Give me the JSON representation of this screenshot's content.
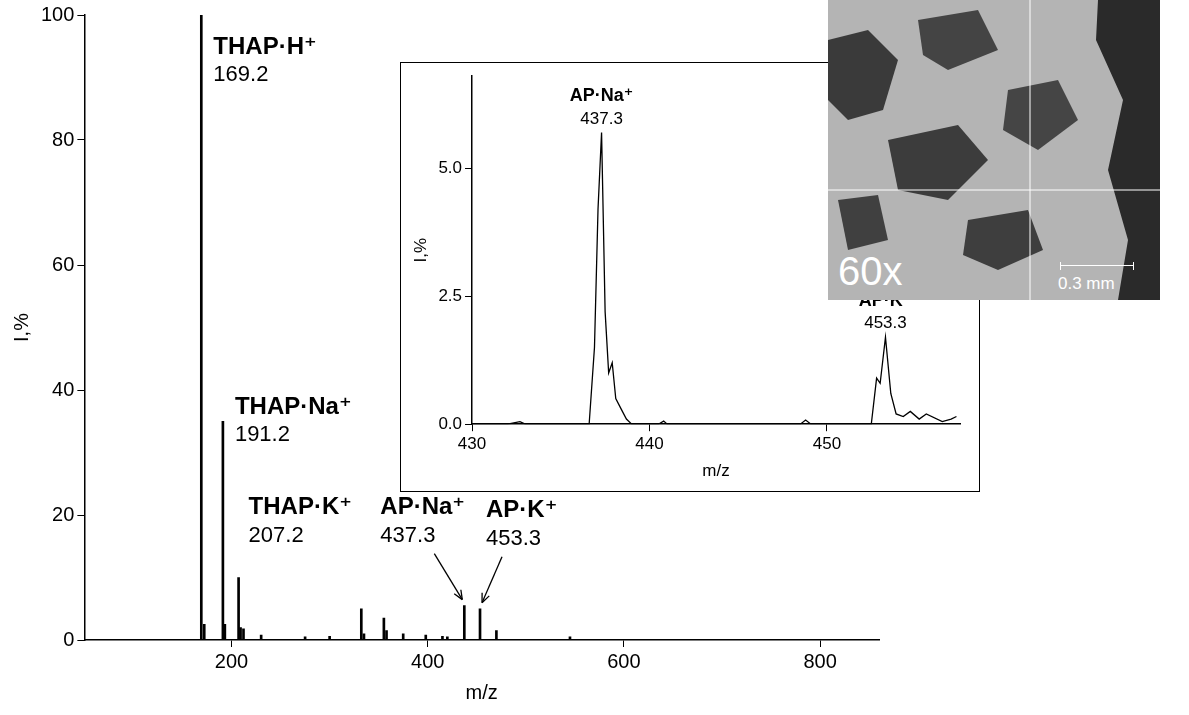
{
  "chart_data": [
    {
      "type": "bar",
      "x": [
        169.2,
        172.2,
        191.2,
        193.2,
        207.2,
        209.2,
        212.2,
        230.2,
        275,
        300,
        332.3,
        335,
        355.3,
        358,
        375,
        398,
        415,
        420,
        437.3,
        453.3,
        470,
        545
      ],
      "values": [
        100,
        2.5,
        35,
        2.5,
        10,
        2,
        1.8,
        0.8,
        0.5,
        0.6,
        5,
        1,
        3.5,
        1.5,
        1,
        0.8,
        0.6,
        0.5,
        5.5,
        5,
        1.5,
        0.5
      ],
      "color": "#000000",
      "xlim": [
        50,
        860
      ],
      "xticks": [
        200,
        400,
        600,
        800
      ],
      "ylim": [
        0,
        100
      ],
      "yticks": [
        0,
        20,
        40,
        60,
        80,
        100
      ],
      "x_label": "m/z",
      "y_label": "I,%",
      "grid": false,
      "annotations": [
        {
          "text": "THAP·H⁺",
          "x": 169.2
        },
        {
          "text": "THAP·Na⁺",
          "x": 191.2
        },
        {
          "text": "THAP·K⁺",
          "x": 207.2
        },
        {
          "text": "AP·Na⁺",
          "x": 437.3
        },
        {
          "text": "AP·K⁺",
          "x": 453.3
        }
      ]
    },
    {
      "type": "line",
      "x": [
        430,
        432,
        432.7,
        433,
        435,
        436.6,
        436.9,
        437.1,
        437.3,
        437.5,
        437.7,
        437.9,
        438.1,
        438.4,
        438.7,
        439,
        440.5,
        440.8,
        441,
        448.5,
        448.8,
        449.1,
        451,
        452.5,
        452.8,
        453.0,
        453.3,
        453.6,
        453.9,
        454.3,
        454.7,
        455.2,
        455.6,
        456.5,
        457,
        457.3
      ],
      "values": [
        0,
        0,
        0.05,
        0,
        0,
        0,
        1.5,
        4.2,
        5.7,
        2.2,
        1.0,
        1.2,
        0.5,
        0.3,
        0.1,
        0,
        0,
        0.06,
        0,
        0,
        0.08,
        0,
        0,
        0,
        0.9,
        0.8,
        1.7,
        0.6,
        0.2,
        0.15,
        0.25,
        0.1,
        0.2,
        0.05,
        0.1,
        0.15
      ],
      "color": "#000000",
      "xlim": [
        430,
        457.5
      ],
      "xticks": [
        430,
        440,
        450
      ],
      "ylim": [
        0,
        6.8
      ],
      "yticks": [
        {
          "value": 0,
          "label": "0.0"
        },
        {
          "value": 2.5,
          "label": "2.5"
        },
        {
          "value": 5,
          "label": "5.0"
        }
      ],
      "x_label": "m/z",
      "y_label": "I,%",
      "grid": false,
      "annotations": [
        {
          "text": "AP·Na⁺",
          "x": 437.3
        },
        {
          "text": "AP·K⁺",
          "x": 453.3
        }
      ]
    }
  ],
  "photo": {
    "magnification": "60x",
    "scale_bar": "0.3 mm"
  }
}
